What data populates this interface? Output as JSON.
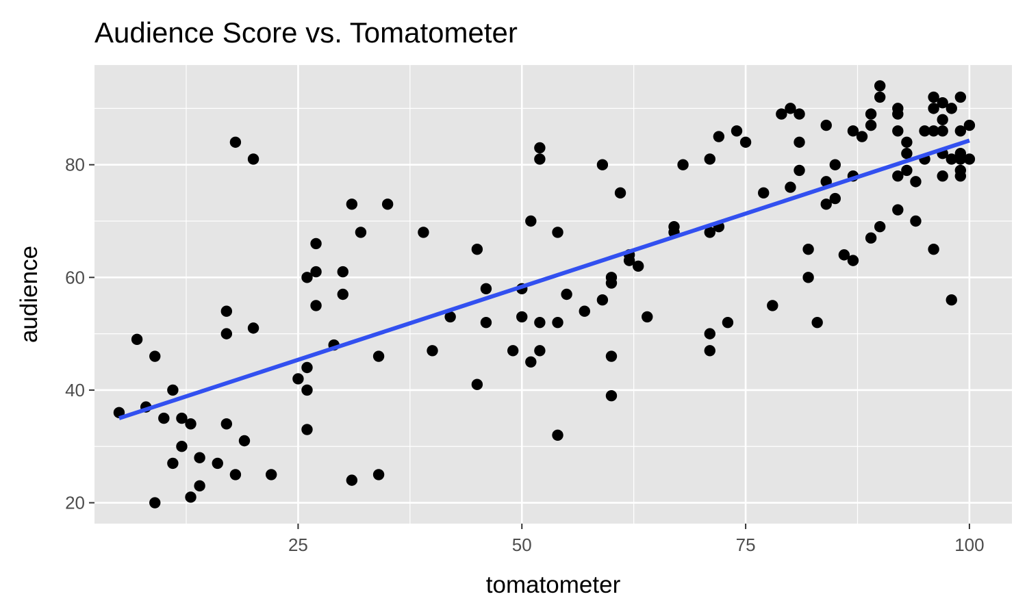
{
  "chart_data": {
    "type": "scatter",
    "title": "Audience Score vs. Tomatometer",
    "xlabel": "tomatometer",
    "ylabel": "audience",
    "xlim": [
      2.25,
      104.75
    ],
    "ylim": [
      16.3,
      97.7
    ],
    "x_ticks": [
      25,
      50,
      75,
      100
    ],
    "y_ticks": [
      20,
      40,
      60,
      80
    ],
    "x_tick_labels": [
      "25",
      "50",
      "75",
      "100"
    ],
    "y_tick_labels": [
      "20",
      "40",
      "60",
      "80"
    ],
    "grid": true,
    "colors": {
      "panel_background": "#e5e5e5",
      "grid": "#ffffff",
      "points": "#000000",
      "trend_line": "#3250f0"
    },
    "trend_line": {
      "method": "lm",
      "x": [
        5,
        100
      ],
      "y": [
        35,
        84.3
      ]
    },
    "points": [
      {
        "x": 5,
        "y": 36
      },
      {
        "x": 7,
        "y": 49
      },
      {
        "x": 8,
        "y": 37
      },
      {
        "x": 9,
        "y": 20
      },
      {
        "x": 9,
        "y": 46
      },
      {
        "x": 10,
        "y": 35
      },
      {
        "x": 11,
        "y": 40
      },
      {
        "x": 11,
        "y": 27
      },
      {
        "x": 12,
        "y": 35
      },
      {
        "x": 12,
        "y": 30
      },
      {
        "x": 13,
        "y": 34
      },
      {
        "x": 13,
        "y": 21
      },
      {
        "x": 14,
        "y": 28
      },
      {
        "x": 14,
        "y": 23
      },
      {
        "x": 16,
        "y": 27
      },
      {
        "x": 17,
        "y": 54
      },
      {
        "x": 17,
        "y": 50
      },
      {
        "x": 17,
        "y": 34
      },
      {
        "x": 18,
        "y": 84
      },
      {
        "x": 18,
        "y": 25
      },
      {
        "x": 19,
        "y": 31
      },
      {
        "x": 20,
        "y": 81
      },
      {
        "x": 20,
        "y": 51
      },
      {
        "x": 22,
        "y": 25
      },
      {
        "x": 25,
        "y": 42
      },
      {
        "x": 26,
        "y": 60
      },
      {
        "x": 26,
        "y": 44
      },
      {
        "x": 26,
        "y": 40
      },
      {
        "x": 26,
        "y": 33
      },
      {
        "x": 27,
        "y": 66
      },
      {
        "x": 27,
        "y": 61
      },
      {
        "x": 27,
        "y": 55
      },
      {
        "x": 29,
        "y": 48
      },
      {
        "x": 30,
        "y": 61
      },
      {
        "x": 30,
        "y": 57
      },
      {
        "x": 31,
        "y": 73
      },
      {
        "x": 31,
        "y": 24
      },
      {
        "x": 32,
        "y": 68
      },
      {
        "x": 34,
        "y": 46
      },
      {
        "x": 34,
        "y": 25
      },
      {
        "x": 35,
        "y": 73
      },
      {
        "x": 39,
        "y": 68
      },
      {
        "x": 40,
        "y": 47
      },
      {
        "x": 42,
        "y": 53
      },
      {
        "x": 45,
        "y": 65
      },
      {
        "x": 45,
        "y": 41
      },
      {
        "x": 46,
        "y": 58
      },
      {
        "x": 46,
        "y": 52
      },
      {
        "x": 49,
        "y": 47
      },
      {
        "x": 50,
        "y": 58
      },
      {
        "x": 50,
        "y": 53
      },
      {
        "x": 51,
        "y": 70
      },
      {
        "x": 51,
        "y": 45
      },
      {
        "x": 52,
        "y": 83
      },
      {
        "x": 52,
        "y": 81
      },
      {
        "x": 52,
        "y": 52
      },
      {
        "x": 52,
        "y": 47
      },
      {
        "x": 54,
        "y": 68
      },
      {
        "x": 54,
        "y": 52
      },
      {
        "x": 54,
        "y": 32
      },
      {
        "x": 55,
        "y": 57
      },
      {
        "x": 57,
        "y": 54
      },
      {
        "x": 59,
        "y": 80
      },
      {
        "x": 59,
        "y": 56
      },
      {
        "x": 60,
        "y": 60
      },
      {
        "x": 60,
        "y": 59
      },
      {
        "x": 60,
        "y": 46
      },
      {
        "x": 60,
        "y": 39
      },
      {
        "x": 61,
        "y": 75
      },
      {
        "x": 62,
        "y": 64
      },
      {
        "x": 62,
        "y": 63
      },
      {
        "x": 63,
        "y": 62
      },
      {
        "x": 64,
        "y": 53
      },
      {
        "x": 67,
        "y": 69
      },
      {
        "x": 67,
        "y": 68
      },
      {
        "x": 68,
        "y": 80
      },
      {
        "x": 71,
        "y": 81
      },
      {
        "x": 71,
        "y": 68
      },
      {
        "x": 71,
        "y": 50
      },
      {
        "x": 71,
        "y": 47
      },
      {
        "x": 72,
        "y": 85
      },
      {
        "x": 72,
        "y": 69
      },
      {
        "x": 73,
        "y": 52
      },
      {
        "x": 74,
        "y": 86
      },
      {
        "x": 75,
        "y": 84
      },
      {
        "x": 77,
        "y": 75
      },
      {
        "x": 78,
        "y": 55
      },
      {
        "x": 79,
        "y": 89
      },
      {
        "x": 80,
        "y": 90
      },
      {
        "x": 80,
        "y": 76
      },
      {
        "x": 81,
        "y": 89
      },
      {
        "x": 81,
        "y": 84
      },
      {
        "x": 81,
        "y": 79
      },
      {
        "x": 82,
        "y": 65
      },
      {
        "x": 82,
        "y": 60
      },
      {
        "x": 83,
        "y": 52
      },
      {
        "x": 84,
        "y": 87
      },
      {
        "x": 84,
        "y": 77
      },
      {
        "x": 84,
        "y": 73
      },
      {
        "x": 85,
        "y": 80
      },
      {
        "x": 85,
        "y": 74
      },
      {
        "x": 86,
        "y": 64
      },
      {
        "x": 87,
        "y": 86
      },
      {
        "x": 87,
        "y": 78
      },
      {
        "x": 87,
        "y": 63
      },
      {
        "x": 88,
        "y": 85
      },
      {
        "x": 89,
        "y": 89
      },
      {
        "x": 89,
        "y": 87
      },
      {
        "x": 89,
        "y": 67
      },
      {
        "x": 90,
        "y": 94
      },
      {
        "x": 90,
        "y": 92
      },
      {
        "x": 90,
        "y": 69
      },
      {
        "x": 92,
        "y": 90
      },
      {
        "x": 92,
        "y": 89
      },
      {
        "x": 92,
        "y": 86
      },
      {
        "x": 92,
        "y": 78
      },
      {
        "x": 92,
        "y": 72
      },
      {
        "x": 93,
        "y": 84
      },
      {
        "x": 93,
        "y": 82
      },
      {
        "x": 93,
        "y": 79
      },
      {
        "x": 94,
        "y": 77
      },
      {
        "x": 94,
        "y": 70
      },
      {
        "x": 95,
        "y": 86
      },
      {
        "x": 95,
        "y": 81
      },
      {
        "x": 96,
        "y": 92
      },
      {
        "x": 96,
        "y": 90
      },
      {
        "x": 96,
        "y": 86
      },
      {
        "x": 96,
        "y": 65
      },
      {
        "x": 97,
        "y": 91
      },
      {
        "x": 97,
        "y": 88
      },
      {
        "x": 97,
        "y": 86
      },
      {
        "x": 97,
        "y": 82
      },
      {
        "x": 97,
        "y": 78
      },
      {
        "x": 98,
        "y": 90
      },
      {
        "x": 98,
        "y": 81
      },
      {
        "x": 98,
        "y": 56
      },
      {
        "x": 99,
        "y": 92
      },
      {
        "x": 99,
        "y": 86
      },
      {
        "x": 99,
        "y": 82
      },
      {
        "x": 99,
        "y": 81
      },
      {
        "x": 99,
        "y": 79
      },
      {
        "x": 99,
        "y": 78
      },
      {
        "x": 100,
        "y": 87
      },
      {
        "x": 100,
        "y": 81
      }
    ]
  }
}
